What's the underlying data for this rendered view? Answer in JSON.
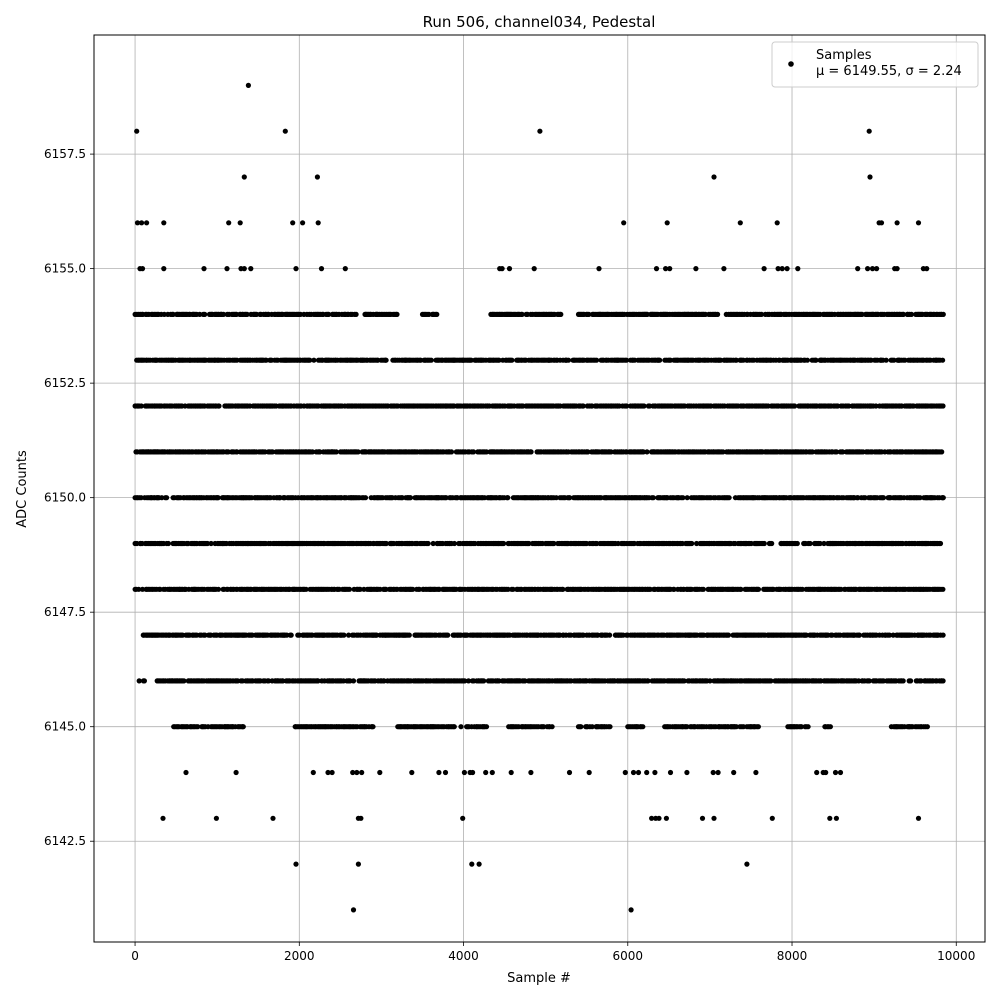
{
  "chart_data": {
    "type": "scatter",
    "title": "Run 506, channel034, Pedestal",
    "xlabel": "Sample #",
    "ylabel": "ADC Counts",
    "xlim": [
      -500,
      10350
    ],
    "ylim": [
      6140.3,
      6160.1
    ],
    "grid": true,
    "legend_position": "top-right",
    "marker_color": "#000000",
    "grid_color": "#b0b0b0",
    "x_ticks": [
      0,
      2000,
      4000,
      6000,
      8000,
      10000
    ],
    "x_tick_labels": [
      "0",
      "2000",
      "4000",
      "6000",
      "8000",
      "10000"
    ],
    "y_ticks": [
      6142.5,
      6145.0,
      6147.5,
      6150.0,
      6152.5,
      6155.0,
      6157.5
    ],
    "y_tick_labels": [
      "6142.5",
      "6145.0",
      "6147.5",
      "6150.0",
      "6152.5",
      "6155.0",
      "6157.5"
    ],
    "legend": {
      "label": "Samples",
      "stats": "μ = 6149.55, σ = 2.24"
    },
    "sample_range": [
      0,
      9850
    ],
    "series": [
      {
        "name": "Samples",
        "summary": {
          "mean": 6149.55,
          "sigma": 2.24
        },
        "levels": [
          {
            "y": 6141,
            "x": [
              2660,
              6040
            ]
          },
          {
            "y": 6142,
            "x": [
              1960,
              2720,
              4100,
              4190,
              7450
            ]
          },
          {
            "y": 6143,
            "x": [
              340,
              990,
              1680,
              2720,
              2750,
              3990,
              6290,
              6340,
              6380,
              6470,
              6910,
              7050,
              7760,
              8460,
              8540,
              9540
            ]
          },
          {
            "y": 6144,
            "x": [
              620,
              1230,
              2170,
              2350,
              2400,
              2650,
              2700,
              2760,
              2980,
              3370,
              3700,
              3780,
              4010,
              4080,
              4110,
              4270,
              4350,
              4580,
              4820,
              5290,
              5530,
              5970,
              6070,
              6130,
              6230,
              6330,
              6520,
              6720,
              7040,
              7100,
              7290,
              7560,
              8300,
              8380,
              8410,
              8530,
              8590
            ]
          },
          {
            "y": 6145,
            "dense": [
              [
                470,
                1330
              ],
              [
                1950,
                2900
              ],
              [
                3200,
                4300
              ],
              [
                4550,
                5100
              ],
              [
                5400,
                5800
              ],
              [
                6000,
                6200
              ],
              [
                6450,
                7600
              ],
              [
                7950,
                8200
              ],
              [
                8400,
                8500
              ],
              [
                9200,
                9650
              ]
            ]
          },
          {
            "y": 6146,
            "dense": [
              [
                50,
                120
              ],
              [
                270,
                9850
              ]
            ]
          },
          {
            "y": 6147,
            "dense": [
              [
                100,
                9850
              ]
            ]
          },
          {
            "y": 6148,
            "dense": [
              [
                0,
                9850
              ]
            ]
          },
          {
            "y": 6149,
            "dense": [
              [
                0,
                9850
              ]
            ]
          },
          {
            "y": 6150,
            "dense": [
              [
                0,
                9850
              ]
            ]
          },
          {
            "y": 6151,
            "dense": [
              [
                0,
                9850
              ]
            ]
          },
          {
            "y": 6152,
            "dense": [
              [
                0,
                9850
              ]
            ]
          },
          {
            "y": 6153,
            "dense": [
              [
                0,
                9850
              ]
            ]
          },
          {
            "y": 6154,
            "dense": [
              [
                0,
                2700
              ],
              [
                2800,
                3200
              ],
              [
                3500,
                3700
              ],
              [
                4300,
                5200
              ],
              [
                5400,
                7100
              ],
              [
                7200,
                9850
              ]
            ]
          },
          {
            "y": 6155,
            "x": [
              60,
              90,
              350,
              840,
              1120,
              1290,
              1330,
              1410,
              1960,
              2270,
              2560,
              4440,
              4470,
              4560,
              4860,
              5650,
              6350,
              6460,
              6510,
              6830,
              7170,
              7660,
              7830,
              7880,
              7940,
              8070,
              8800,
              8920,
              8980,
              9030,
              9250,
              9280,
              9600,
              9640
            ]
          },
          {
            "y": 6156,
            "x": [
              30,
              80,
              140,
              350,
              1140,
              1280,
              1920,
              2040,
              2230,
              5950,
              6480,
              7370,
              7820,
              9060,
              9090,
              9280,
              9540
            ]
          },
          {
            "y": 6157,
            "x": [
              1330,
              2220,
              7050,
              8950
            ]
          },
          {
            "y": 6158,
            "x": [
              20,
              1830,
              4930,
              8940
            ]
          },
          {
            "y": 6159,
            "x": [
              1380
            ]
          }
        ]
      }
    ]
  }
}
